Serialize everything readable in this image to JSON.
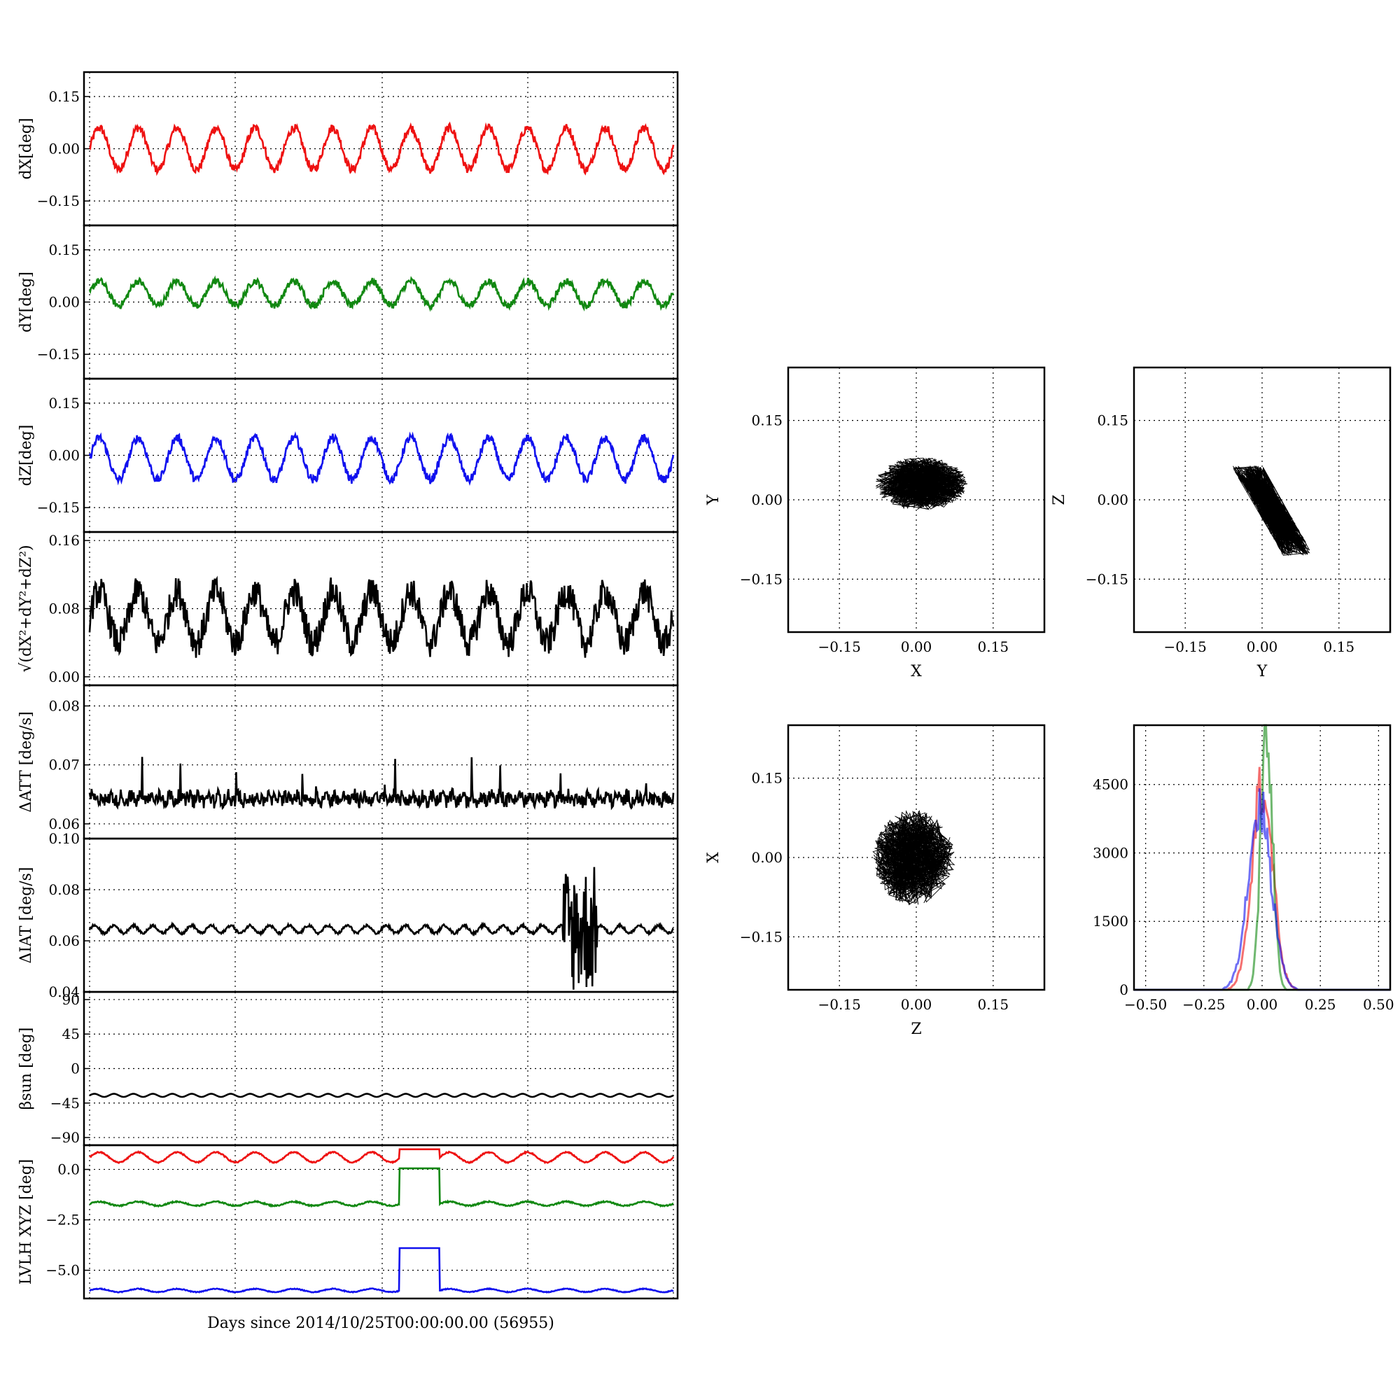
{
  "colors": {
    "red": "#ee1111",
    "green": "#118811",
    "blue": "#1111ee",
    "black": "#000000"
  },
  "chart_data": [
    {
      "type": "line",
      "ylabel": "dX[deg]",
      "yticks": [
        "0.15",
        "0.00",
        "−0.15"
      ],
      "yvals": [
        0.15,
        0.0,
        -0.15
      ],
      "ylim": [
        -0.22,
        0.22
      ],
      "series": [
        {
          "color": "red",
          "mean": 0.0,
          "amp": 0.06,
          "cycles": 15,
          "noise": 0.012
        }
      ]
    },
    {
      "type": "line",
      "ylabel": "dY[deg]",
      "yticks": [
        "0.15",
        "0.00",
        "−0.15"
      ],
      "yvals": [
        0.15,
        0.0,
        -0.15
      ],
      "ylim": [
        -0.22,
        0.22
      ],
      "series": [
        {
          "color": "green",
          "mean": 0.025,
          "amp": 0.035,
          "cycles": 15,
          "noise": 0.01
        }
      ]
    },
    {
      "type": "line",
      "ylabel": "dZ[deg]",
      "yticks": [
        "0.15",
        "0.00",
        "−0.15"
      ],
      "yvals": [
        0.15,
        0.0,
        -0.15
      ],
      "ylim": [
        -0.22,
        0.22
      ],
      "series": [
        {
          "color": "blue",
          "mean": -0.01,
          "amp": 0.06,
          "cycles": 15,
          "noise": 0.012
        }
      ]
    },
    {
      "type": "line",
      "ylabel": "√(dX²+dY²+dZ²)",
      "yticks": [
        "0.16",
        "0.08",
        "0.00"
      ],
      "yvals": [
        0.16,
        0.08,
        0.0
      ],
      "ylim": [
        -0.01,
        0.17
      ],
      "series": [
        {
          "color": "black",
          "mean": 0.07,
          "amp": 0.03,
          "cycles": 15,
          "noise": 0.018
        }
      ]
    },
    {
      "type": "line",
      "ylabel": "ΔATT [deg/s]",
      "yticks": [
        "0.08",
        "0.07",
        "0.06"
      ],
      "yvals": [
        0.08,
        0.07,
        0.06
      ],
      "ylim": [
        0.0575,
        0.0835
      ],
      "series": [
        {
          "color": "black",
          "mean": 0.0643,
          "amp": 0.0005,
          "cycles": 60,
          "noise": 0.0012
        }
      ]
    },
    {
      "type": "line",
      "ylabel": "ΔIAT [deg/s]",
      "yticks": [
        "0.10",
        "0.08",
        "0.06",
        "0.04"
      ],
      "yvals": [
        0.1,
        0.08,
        0.06,
        0.04
      ],
      "ylim": [
        0.04,
        0.1
      ],
      "series": [
        {
          "color": "black",
          "mean": 0.0645,
          "amp": 0.0015,
          "cycles": 30,
          "noise": 0.0005
        }
      ]
    },
    {
      "type": "line",
      "ylabel": "βsun [deg]",
      "yticks": [
        "90",
        "45",
        "0",
        "−45",
        "−90"
      ],
      "yvals": [
        90,
        45,
        0,
        -45,
        -90
      ],
      "ylim": [
        -100,
        100
      ],
      "series": [
        {
          "color": "black",
          "mean": -35,
          "amp": 2,
          "cycles": 30,
          "noise": 0
        }
      ]
    },
    {
      "type": "line",
      "ylabel": "LVLH XYZ [deg]",
      "xlabel": "Days since 2014/10/25T00:00:00.00 (56955)",
      "yticks": [
        "0.0",
        "−2.5",
        "−5.0"
      ],
      "yvals": [
        0.0,
        -2.5,
        -5.0
      ],
      "ylim": [
        -6.4,
        1.2
      ],
      "series": [
        {
          "color": "red",
          "mean": 0.6,
          "amp": 0.25,
          "cycles": 15,
          "noise": 0.03
        },
        {
          "color": "green",
          "mean": -1.7,
          "amp": 0.1,
          "cycles": 15,
          "noise": 0.03
        },
        {
          "color": "blue",
          "mean": -6.0,
          "amp": 0.08,
          "cycles": 15,
          "noise": 0.02
        }
      ]
    },
    {
      "type": "scatter",
      "xlabel": "X",
      "ylabel": "Y",
      "ticks": [
        "−0.15",
        "0.00",
        "0.15"
      ],
      "tickvals": [
        -0.15,
        0.0,
        0.15
      ],
      "lim": [
        -0.25,
        0.25
      ]
    },
    {
      "type": "scatter",
      "xlabel": "Y",
      "ylabel": "Z",
      "ticks": [
        "−0.15",
        "0.00",
        "0.15"
      ],
      "tickvals": [
        -0.15,
        0.0,
        0.15
      ],
      "lim": [
        -0.25,
        0.25
      ]
    },
    {
      "type": "scatter",
      "xlabel": "Z",
      "ylabel": "X",
      "ticks": [
        "−0.15",
        "0.00",
        "0.15"
      ],
      "tickvals": [
        -0.15,
        0.0,
        0.15
      ],
      "lim": [
        -0.25,
        0.25
      ]
    },
    {
      "type": "histogram",
      "xticks": [
        "−0.50",
        "−0.25",
        "0.00",
        "0.25",
        "0.50"
      ],
      "xvals": [
        -0.5,
        -0.25,
        0.0,
        0.25,
        0.5
      ],
      "yticks": [
        "4500",
        "3000",
        "1500",
        "0"
      ],
      "yvals": [
        4500,
        3000,
        1500,
        0
      ],
      "xlim": [
        -0.55,
        0.55
      ],
      "ylim": [
        0,
        5800
      ],
      "series": [
        {
          "color": "red",
          "center": 0.0,
          "width": 0.045,
          "peak": 4500
        },
        {
          "color": "green",
          "center": 0.02,
          "width": 0.025,
          "peak": 5700
        },
        {
          "color": "blue",
          "center": -0.01,
          "width": 0.05,
          "peak": 4000
        }
      ]
    }
  ]
}
